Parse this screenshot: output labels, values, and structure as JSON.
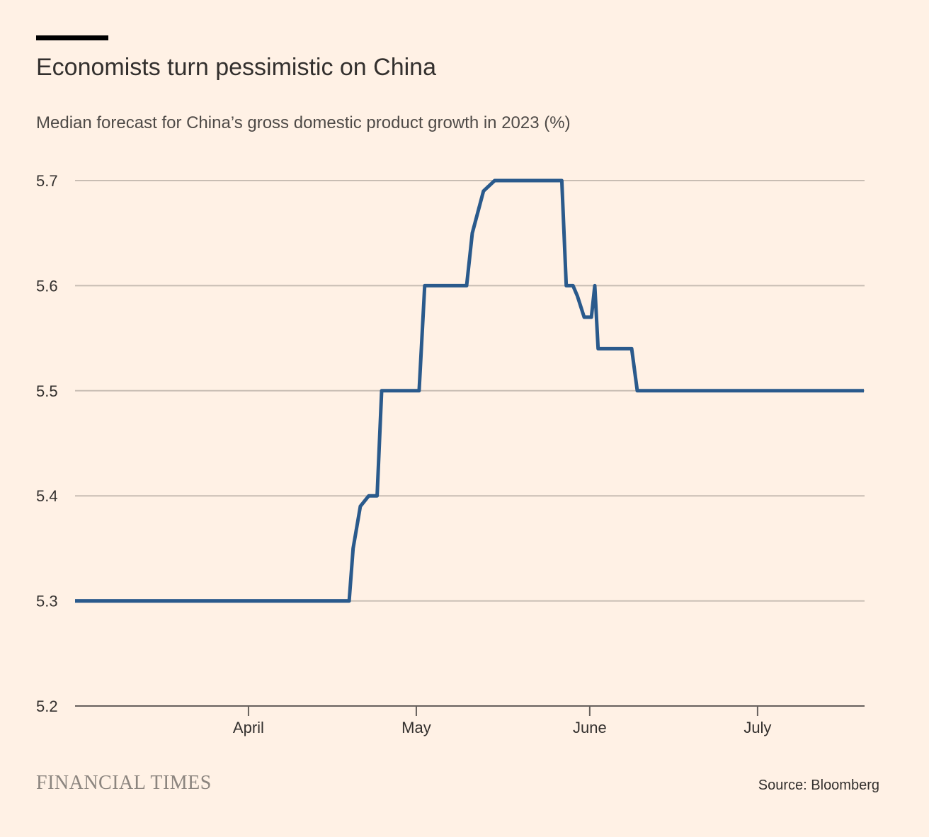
{
  "header": {
    "title": "Economists turn pessimistic on China",
    "subtitle": "Median forecast for China’s gross domestic product growth in 2023 (%)"
  },
  "footer": {
    "logo_text": "FINANCIAL TIMES",
    "source": "Source: Bloomberg"
  },
  "colors": {
    "background": "#FFF1E5",
    "line": "#2A5A8C",
    "grid": "#C8BDB3",
    "axis": "#66605C",
    "text": "#33302E"
  },
  "chart_data": {
    "type": "line",
    "title": "Economists turn pessimistic on China",
    "subtitle": "Median forecast for China’s gross domestic product growth in 2023 (%)",
    "xlabel": "",
    "ylabel": "",
    "x_unit": "days since 1 March 2023",
    "xlim": [
      0,
      141
    ],
    "ylim": [
      5.2,
      5.7
    ],
    "y_ticks": [
      5.2,
      5.3,
      5.4,
      5.5,
      5.6,
      5.7
    ],
    "y_tick_labels": [
      "5.2",
      "5.3",
      "5.4",
      "5.5",
      "5.6",
      "5.7"
    ],
    "x_ticks": [
      {
        "label": "April",
        "value": 31
      },
      {
        "label": "May",
        "value": 61
      },
      {
        "label": "June",
        "value": 92
      },
      {
        "label": "July",
        "value": 122
      }
    ],
    "grid": true,
    "series": [
      {
        "name": "Median forecast",
        "x": [
          0,
          49,
          49.7,
          51,
          52.5,
          54,
          54.8,
          55.5,
          61.5,
          62.5,
          70,
          71,
          73,
          75,
          87,
          87.8,
          89,
          89.8,
          91,
          92.3,
          92.9,
          93.5,
          99.5,
          100.5,
          141
        ],
        "y": [
          5.3,
          5.3,
          5.35,
          5.39,
          5.4,
          5.4,
          5.5,
          5.5,
          5.5,
          5.6,
          5.6,
          5.65,
          5.69,
          5.7,
          5.7,
          5.6,
          5.6,
          5.59,
          5.57,
          5.57,
          5.6,
          5.54,
          5.54,
          5.5,
          5.5
        ]
      }
    ],
    "legend": "none"
  }
}
